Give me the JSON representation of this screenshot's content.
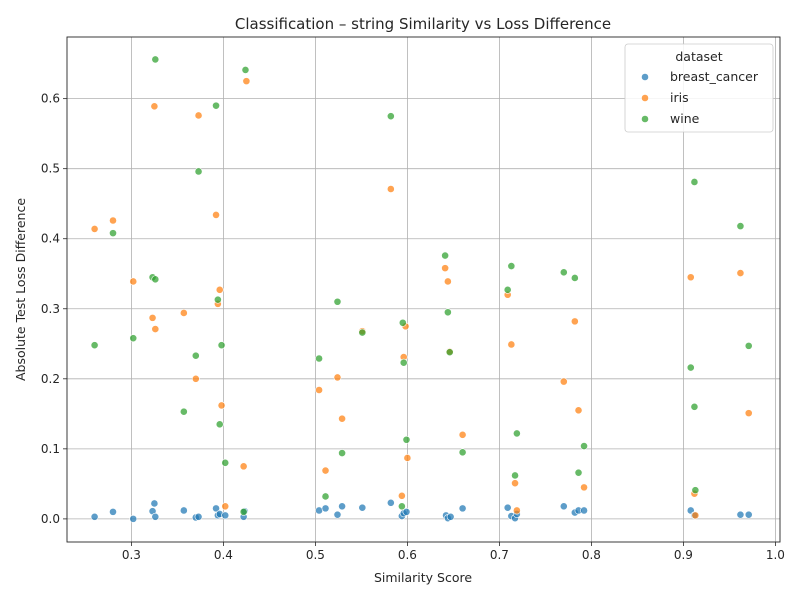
{
  "chart_data": {
    "type": "scatter",
    "title": "Classification – string Similarity vs Loss Difference",
    "xlabel": "Similarity Score",
    "ylabel": "Absolute Test Loss Difference",
    "xlim": [
      0.23,
      1.005
    ],
    "ylim": [
      -0.033,
      0.688
    ],
    "xticks": [
      0.3,
      0.4,
      0.5,
      0.6,
      0.7,
      0.8,
      0.9,
      1.0
    ],
    "xtick_labels": [
      "0.3",
      "0.4",
      "0.5",
      "0.6",
      "0.7",
      "0.8",
      "0.9",
      "1.0"
    ],
    "yticks": [
      0.0,
      0.1,
      0.2,
      0.3,
      0.4,
      0.5,
      0.6
    ],
    "ytick_labels": [
      "0.0",
      "0.1",
      "0.2",
      "0.3",
      "0.4",
      "0.5",
      "0.6"
    ],
    "grid": true,
    "legend": {
      "title": "dataset",
      "position": "top-right"
    },
    "series": [
      {
        "name": "breast_cancer",
        "color": "#1f77b4",
        "x": [
          0.26,
          0.28,
          0.302,
          0.323,
          0.325,
          0.326,
          0.357,
          0.37,
          0.373,
          0.392,
          0.394,
          0.396,
          0.402,
          0.422,
          0.423,
          0.504,
          0.511,
          0.524,
          0.529,
          0.551,
          0.582,
          0.594,
          0.596,
          0.599,
          0.642,
          0.644,
          0.647,
          0.66,
          0.709,
          0.713,
          0.717,
          0.719,
          0.77,
          0.782,
          0.786,
          0.792,
          0.908,
          0.912,
          0.962,
          0.971
        ],
        "y": [
          0.003,
          0.01,
          0.0,
          0.011,
          0.022,
          0.003,
          0.012,
          0.002,
          0.003,
          0.015,
          0.005,
          0.007,
          0.005,
          0.003,
          0.011,
          0.012,
          0.015,
          0.006,
          0.018,
          0.016,
          0.023,
          0.004,
          0.008,
          0.01,
          0.005,
          0.001,
          0.003,
          0.015,
          0.016,
          0.004,
          0.001,
          0.007,
          0.018,
          0.009,
          0.012,
          0.012,
          0.012,
          0.005,
          0.006,
          0.006
        ]
      },
      {
        "name": "iris",
        "color": "#ff7f0e",
        "x": [
          0.26,
          0.28,
          0.302,
          0.323,
          0.325,
          0.326,
          0.357,
          0.37,
          0.373,
          0.392,
          0.394,
          0.396,
          0.398,
          0.402,
          0.422,
          0.425,
          0.504,
          0.511,
          0.524,
          0.529,
          0.551,
          0.582,
          0.594,
          0.596,
          0.598,
          0.6,
          0.641,
          0.644,
          0.646,
          0.66,
          0.709,
          0.713,
          0.717,
          0.719,
          0.77,
          0.782,
          0.786,
          0.792,
          0.908,
          0.912,
          0.913,
          0.962,
          0.971
        ],
        "y": [
          0.414,
          0.426,
          0.339,
          0.287,
          0.589,
          0.271,
          0.294,
          0.2,
          0.576,
          0.434,
          0.307,
          0.327,
          0.162,
          0.018,
          0.075,
          0.625,
          0.184,
          0.069,
          0.202,
          0.143,
          0.268,
          0.471,
          0.033,
          0.231,
          0.275,
          0.087,
          0.358,
          0.339,
          0.239,
          0.12,
          0.32,
          0.249,
          0.051,
          0.012,
          0.196,
          0.282,
          0.155,
          0.045,
          0.345,
          0.036,
          0.005,
          0.351,
          0.151
        ]
      },
      {
        "name": "wine",
        "color": "#2ca02c",
        "x": [
          0.26,
          0.28,
          0.302,
          0.323,
          0.326,
          0.326,
          0.357,
          0.37,
          0.373,
          0.392,
          0.394,
          0.396,
          0.398,
          0.402,
          0.422,
          0.424,
          0.504,
          0.511,
          0.524,
          0.529,
          0.551,
          0.582,
          0.594,
          0.595,
          0.596,
          0.599,
          0.641,
          0.644,
          0.646,
          0.66,
          0.709,
          0.713,
          0.717,
          0.719,
          0.77,
          0.782,
          0.786,
          0.792,
          0.908,
          0.912,
          0.912,
          0.913,
          0.962,
          0.971
        ],
        "y": [
          0.248,
          0.408,
          0.258,
          0.345,
          0.342,
          0.656,
          0.153,
          0.233,
          0.496,
          0.59,
          0.313,
          0.135,
          0.248,
          0.08,
          0.01,
          0.641,
          0.229,
          0.032,
          0.31,
          0.094,
          0.266,
          0.575,
          0.018,
          0.28,
          0.223,
          0.113,
          0.376,
          0.295,
          0.238,
          0.095,
          0.327,
          0.361,
          0.062,
          0.122,
          0.352,
          0.344,
          0.066,
          0.104,
          0.216,
          0.481,
          0.16,
          0.041,
          0.418,
          0.247
        ]
      }
    ]
  }
}
